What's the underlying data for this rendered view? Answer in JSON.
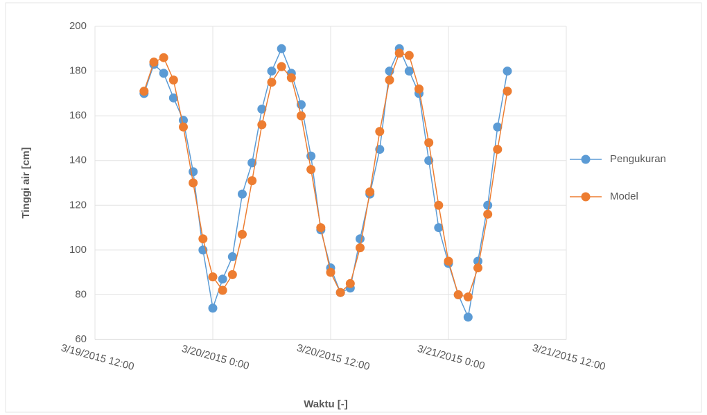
{
  "chart_data": {
    "type": "line",
    "x_label": "Waktu [-]",
    "y_label": "Tinggi air [cm]",
    "x": [
      "3/19/2015 17:00",
      "3/19/2015 18:00",
      "3/19/2015 19:00",
      "3/19/2015 20:00",
      "3/19/2015 21:00",
      "3/19/2015 22:00",
      "3/19/2015 23:00",
      "3/20/2015 0:00",
      "3/20/2015 1:00",
      "3/20/2015 2:00",
      "3/20/2015 3:00",
      "3/20/2015 4:00",
      "3/20/2015 5:00",
      "3/20/2015 6:00",
      "3/20/2015 7:00",
      "3/20/2015 8:00",
      "3/20/2015 9:00",
      "3/20/2015 10:00",
      "3/20/2015 11:00",
      "3/20/2015 12:00",
      "3/20/2015 13:00",
      "3/20/2015 14:00",
      "3/20/2015 15:00",
      "3/20/2015 16:00",
      "3/20/2015 17:00",
      "3/20/2015 18:00",
      "3/20/2015 19:00",
      "3/20/2015 20:00",
      "3/20/2015 21:00",
      "3/20/2015 22:00",
      "3/20/2015 23:00",
      "3/21/2015 0:00",
      "3/21/2015 1:00",
      "3/21/2015 2:00",
      "3/21/2015 3:00",
      "3/21/2015 4:00",
      "3/21/2015 5:00",
      "3/21/2015 6:00"
    ],
    "series": [
      {
        "name": "Pengukuran",
        "color": "#5b9bd5",
        "values": [
          170,
          183,
          179,
          168,
          158,
          135,
          100,
          74,
          87,
          97,
          125,
          139,
          163,
          180,
          190,
          179,
          165,
          142,
          109,
          92,
          81,
          83,
          105,
          125,
          145,
          180,
          190,
          180,
          170,
          140,
          110,
          94,
          80,
          70,
          95,
          120,
          155,
          180
        ]
      },
      {
        "name": "Model",
        "color": "#ed7d31",
        "values": [
          171,
          184,
          186,
          176,
          155,
          130,
          105,
          88,
          82,
          89,
          107,
          131,
          156,
          175,
          182,
          177,
          160,
          136,
          110,
          90,
          81,
          85,
          101,
          126,
          153,
          176,
          188,
          187,
          172,
          148,
          120,
          95,
          80,
          79,
          92,
          116,
          145,
          171
        ]
      }
    ],
    "xlim": [
      "3/19/2015 12:00",
      "3/21/2015 12:00"
    ],
    "xticks": [
      "3/19/2015 12:00",
      "3/20/2015 0:00",
      "3/20/2015 12:00",
      "3/21/2015 0:00",
      "3/21/2015 12:00"
    ],
    "ylim": [
      60,
      200
    ],
    "yticks": [
      60,
      80,
      100,
      120,
      140,
      160,
      180,
      200
    ],
    "grid": true,
    "legend": "right"
  }
}
